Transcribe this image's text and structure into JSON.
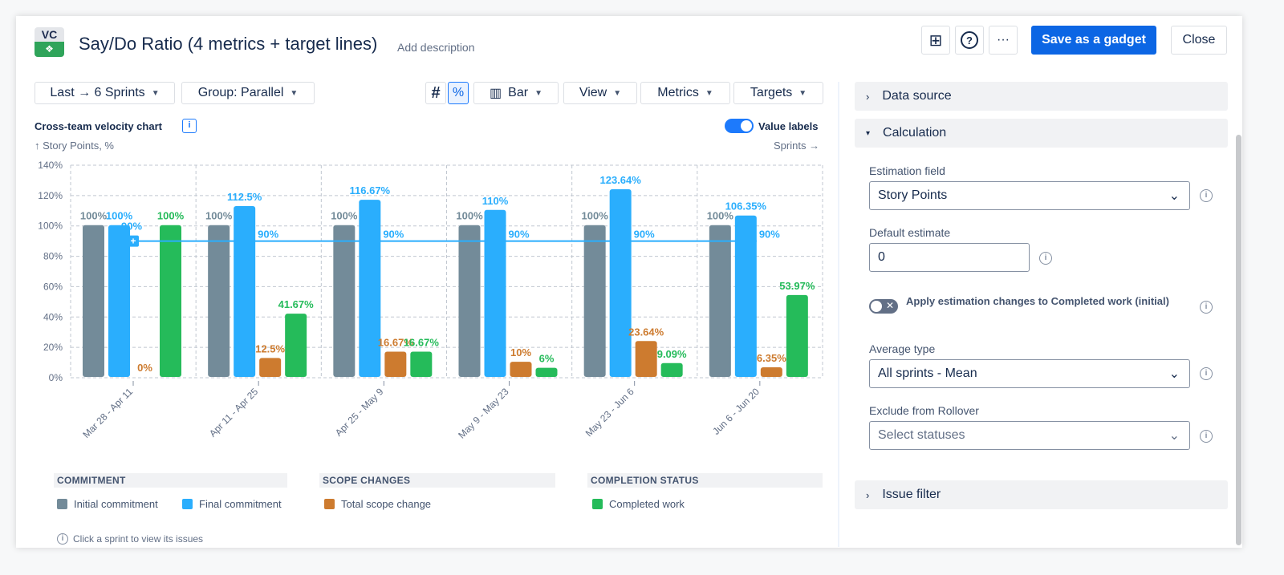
{
  "header": {
    "logo_text": "VC",
    "title": "Say/Do Ratio (4 metrics + target lines)",
    "add_description": "Add description",
    "save_label": "Save as a gadget",
    "close_label": "Close",
    "more_label": "···",
    "help_label": "?"
  },
  "toolbar": {
    "range": "Last → 6 Sprints",
    "group": "Group: Parallel",
    "count_mode": "#",
    "percent_mode": "%",
    "chart_type": "Bar",
    "view": "View",
    "metrics": "Metrics",
    "targets": "Targets"
  },
  "chart_header": {
    "title": "Cross-team velocity chart",
    "value_labels": "Value labels",
    "value_labels_on": true,
    "y_hint": "↑ Story Points, %",
    "x_hint": "Sprints →"
  },
  "chart_data": {
    "type": "bar",
    "ylabel": "Story Points, %",
    "xlabel": "Sprints",
    "ylim": [
      0,
      140
    ],
    "yticks": [
      "0%",
      "20%",
      "40%",
      "60%",
      "80%",
      "100%",
      "120%",
      "140%"
    ],
    "grid": true,
    "categories": [
      "Mar 28 - Apr 11",
      "Apr 11 - Apr 25",
      "Apr 25 - May 9",
      "May 9 - May 23",
      "May 23 - Jun 6",
      "Jun 6 - Jun 20"
    ],
    "series": [
      {
        "name": "Initial commitment",
        "color": "#738b99",
        "values": [
          100,
          100,
          100,
          100,
          100,
          100
        ],
        "labels": [
          "100%",
          "100%",
          "100%",
          "100%",
          "100%",
          "100%"
        ]
      },
      {
        "name": "Final commitment",
        "color": "#2aaefd",
        "values": [
          100,
          112.5,
          116.67,
          110,
          123.64,
          106.35
        ],
        "labels": [
          "100%",
          "112.5%",
          "116.67%",
          "110%",
          "123.64%",
          "106.35%"
        ]
      },
      {
        "name": "Total scope change",
        "color": "#cd7b2f",
        "values": [
          0,
          12.5,
          16.67,
          10,
          23.64,
          6.35
        ],
        "labels": [
          "0%",
          "12.5%",
          "16.67%",
          "10%",
          "23.64%",
          "6.35%"
        ]
      },
      {
        "name": "Completed work",
        "color": "#25bb5a",
        "values": [
          100,
          41.67,
          16.67,
          6,
          9.09,
          53.97
        ],
        "labels": [
          "100%",
          "41.67%",
          "16.67%",
          "6%",
          "9.09%",
          "53.97%"
        ]
      }
    ],
    "target_line": {
      "value": 90,
      "label": "90%",
      "color": "#2aaefd"
    }
  },
  "legend": {
    "groups": [
      {
        "title": "COMMITMENT",
        "items": [
          "Initial commitment",
          "Final commitment"
        ]
      },
      {
        "title": "SCOPE CHANGES",
        "items": [
          "Total scope change"
        ]
      },
      {
        "title": "COMPLETION STATUS",
        "items": [
          "Completed work"
        ]
      }
    ]
  },
  "footer_hint": "Click a sprint to view its issues",
  "panel": {
    "data_source": "Data source",
    "calculation": "Calculation",
    "issue_filter": "Issue filter",
    "estimation_field_label": "Estimation field",
    "estimation_field_value": "Story Points",
    "default_estimate_label": "Default estimate",
    "default_estimate_value": "0",
    "apply_label": "Apply estimation changes to Completed work (initial)",
    "apply_on": false,
    "average_type_label": "Average type",
    "average_type_value": "All sprints - Mean",
    "exclude_label": "Exclude from Rollover",
    "exclude_placeholder": "Select statuses"
  }
}
